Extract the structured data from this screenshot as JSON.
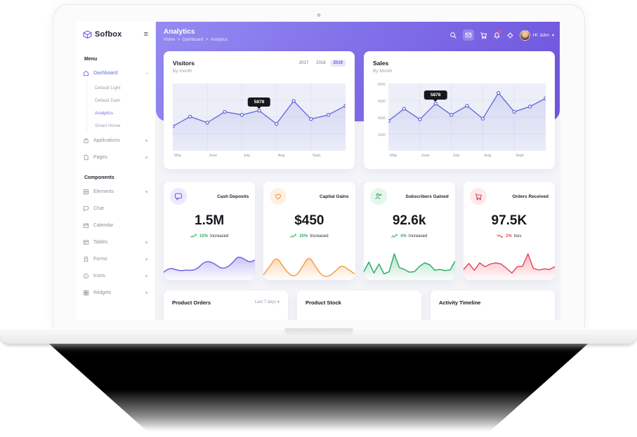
{
  "colors": {
    "accent": "#6c63e8",
    "banner_gradient_start": "#958af1",
    "banner_gradient_end": "#7156dd",
    "chart_line": "#5c66db",
    "green": "#2fae68",
    "orange": "#f69b4a",
    "red": "#e8495f",
    "tooltip_bg": "#17171c"
  },
  "sidebar": {
    "logo": "Sofbox",
    "burger_glyph": "≡",
    "menu_label": "Menu",
    "dashboard": {
      "label": "Dashboard",
      "expand": "-"
    },
    "dashboard_children": [
      {
        "label": "Default Light"
      },
      {
        "label": "Default Dark"
      },
      {
        "label": "Analytics"
      },
      {
        "label": "Smart Home"
      }
    ],
    "menu_items": [
      {
        "label": "Applications",
        "expand": "+"
      },
      {
        "label": "Pages",
        "expand": "+"
      }
    ],
    "components_label": "Components",
    "component_items": [
      {
        "label": "Elements",
        "expand": "+"
      },
      {
        "label": "Chat",
        "expand": ""
      },
      {
        "label": "Calendar",
        "expand": ""
      },
      {
        "label": "Tables",
        "expand": "+"
      },
      {
        "label": "Forms",
        "expand": "+"
      },
      {
        "label": "Icons",
        "expand": "+"
      },
      {
        "label": "Widgets",
        "expand": "+"
      }
    ]
  },
  "header": {
    "title": "Analytics",
    "breadcrumb": [
      "Home",
      "Dashboard",
      "Analytics"
    ],
    "breadcrumb_sep": ">",
    "user_label": "Hi' John",
    "chevron_glyph": "▾"
  },
  "visitors_card": {
    "years": [
      "2017",
      "2018",
      "2019"
    ],
    "active_year": "2019"
  },
  "stats": [
    {
      "title": "Cash Deposits",
      "value": "1.5M",
      "trend_pct": "10%",
      "trend_text": "Increased",
      "direction": "up"
    },
    {
      "title": "Capital Gains",
      "value": "$450",
      "trend_pct": "20%",
      "trend_text": "Increased",
      "direction": "up"
    },
    {
      "title": "Subscribers Gained",
      "value": "92.6k",
      "trend_pct": "4%",
      "trend_text": "Increased",
      "direction": "up"
    },
    {
      "title": "Orders Received",
      "value": "97.5K",
      "trend_pct": "2%",
      "trend_text": "loss",
      "direction": "down"
    }
  ],
  "bottom_cards": [
    {
      "title": "Product Orders",
      "filter": "Last 7 days ▾"
    },
    {
      "title": "Product Stock"
    },
    {
      "title": "Activity Timeline"
    }
  ],
  "chart_data": [
    {
      "id": "visitors",
      "type": "line",
      "title": "Visitors",
      "subtitle": "By month",
      "x_labels": [
        "May",
        "June",
        "July",
        "Aug",
        "Sept"
      ],
      "values": [
        36,
        52,
        42,
        60,
        55,
        62,
        40,
        78,
        48,
        55,
        70
      ],
      "ylim": [
        0,
        100
      ],
      "grid": true,
      "markers": true,
      "smooth": false,
      "tooltip": {
        "index": 5,
        "label": "5878"
      },
      "color": "#5c66db",
      "legend": "none"
    },
    {
      "id": "sales",
      "type": "line",
      "title": "Sales",
      "subtitle": "By Month",
      "x_labels": [
        "May",
        "June",
        "July",
        "Aug",
        "Sept"
      ],
      "y_ticks": [
        "8000",
        "6000",
        "4000",
        "2000"
      ],
      "values": [
        3600,
        5200,
        3800,
        5878,
        4400,
        5600,
        3900,
        7300,
        4800,
        5500,
        6600
      ],
      "ylim": [
        0,
        8000
      ],
      "grid": true,
      "markers": true,
      "smooth": false,
      "tooltip": {
        "index": 3,
        "label": "5878"
      },
      "color": "#5c66db",
      "legend": "none"
    },
    {
      "id": "spark_cash",
      "type": "area",
      "title": "Cash Deposits trend",
      "values": [
        28,
        44,
        38,
        33,
        36,
        34,
        42,
        64,
        68,
        58,
        42,
        44,
        60,
        86,
        78,
        64,
        72
      ],
      "ylim": [
        0,
        110
      ],
      "grid": false,
      "markers": false,
      "smooth": true,
      "color": "#6c63e8"
    },
    {
      "id": "spark_gains",
      "type": "area",
      "title": "Capital Gains trend",
      "values": [
        18,
        50,
        85,
        50,
        18,
        12,
        48,
        88,
        48,
        14,
        12,
        30,
        55,
        38,
        22
      ],
      "ylim": [
        0,
        110
      ],
      "grid": false,
      "markers": false,
      "smooth": true,
      "color": "#f69b4a"
    },
    {
      "id": "spark_subs",
      "type": "area",
      "title": "Subscribers Gained trend",
      "values": [
        30,
        65,
        25,
        58,
        22,
        30,
        95,
        45,
        38,
        28,
        30,
        50,
        62,
        55,
        35,
        38,
        34,
        36,
        68
      ],
      "ylim": [
        0,
        110
      ],
      "grid": false,
      "markers": false,
      "smooth": false,
      "color": "#2fae68"
    },
    {
      "id": "spark_orders",
      "type": "area",
      "title": "Orders Received trend",
      "values": [
        38,
        60,
        35,
        62,
        48,
        58,
        62,
        58,
        42,
        25,
        48,
        50,
        95,
        42,
        36,
        40,
        38,
        48
      ],
      "ylim": [
        0,
        110
      ],
      "grid": false,
      "markers": false,
      "smooth": false,
      "color": "#e8495f"
    }
  ]
}
